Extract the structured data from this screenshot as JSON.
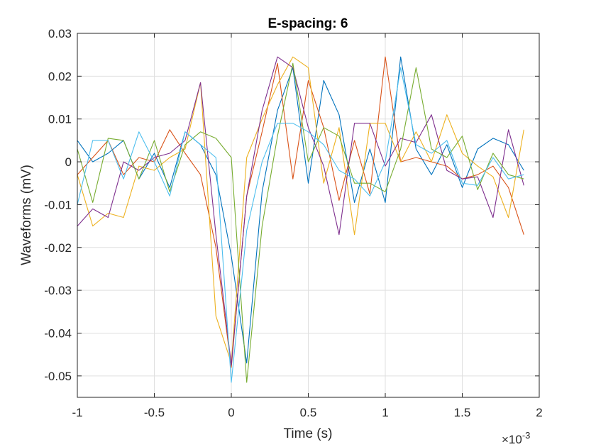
{
  "chart_data": {
    "type": "line",
    "title": "E-spacing: 6",
    "xlabel": "Time (s)",
    "ylabel": "Waveforms (mV)",
    "x_exponent_label": "×10",
    "x_exponent_power": "-3",
    "xlim": [
      -1,
      2
    ],
    "ylim": [
      -0.055,
      0.03
    ],
    "x_ticks": [
      -1,
      -0.5,
      0,
      0.5,
      1,
      1.5,
      2
    ],
    "x_tick_labels": [
      "-1",
      "-0.5",
      "0",
      "0.5",
      "1",
      "1.5",
      "2"
    ],
    "y_ticks": [
      0.03,
      0.02,
      0.01,
      0,
      -0.01,
      -0.02,
      -0.03,
      -0.04,
      -0.05
    ],
    "y_tick_labels": [
      "0.03",
      "0.02",
      "0.01",
      "0",
      "-0.01",
      "-0.02",
      "-0.03",
      "-0.04",
      "-0.05"
    ],
    "grid": true,
    "x": [
      -1.0,
      -0.9,
      -0.8,
      -0.7,
      -0.6,
      -0.5,
      -0.4,
      -0.3,
      -0.2,
      -0.1,
      0.0,
      0.1,
      0.2,
      0.3,
      0.4,
      0.5,
      0.6,
      0.7,
      0.8,
      0.9,
      1.0,
      1.1,
      1.2,
      1.3,
      1.4,
      1.5,
      1.6,
      1.7,
      1.8,
      1.9
    ],
    "series": [
      {
        "color": "#0072BD",
        "values": [
          0.005,
          0.0,
          0.002,
          0.005,
          -0.004,
          0.002,
          -0.006,
          0.007,
          0.004,
          -0.003,
          -0.022,
          -0.047,
          -0.007,
          0.012,
          0.022,
          -0.005,
          0.019,
          0.011,
          -0.0095,
          0.003,
          -0.0095,
          0.0245,
          0.003,
          -0.003,
          0.004,
          -0.006,
          0.003,
          0.0055,
          0.004,
          -0.002
        ]
      },
      {
        "color": "#D95319",
        "values": [
          -0.003,
          0.001,
          0.005,
          -0.003,
          0.001,
          0.0,
          0.0075,
          0.002,
          -0.003,
          -0.02,
          -0.048,
          -0.008,
          0.007,
          0.023,
          -0.004,
          0.019,
          0.008,
          -0.009,
          0.005,
          -0.0075,
          0.0245,
          0.0,
          0.001,
          0.0,
          -0.001,
          -0.004,
          -0.003,
          -0.001,
          -0.006,
          -0.017
        ]
      },
      {
        "color": "#EDB120",
        "values": [
          -0.003,
          -0.015,
          -0.012,
          -0.013,
          -0.001,
          -0.002,
          0.001,
          0.003,
          0.0185,
          -0.036,
          -0.047,
          0.001,
          0.01,
          0.018,
          0.0245,
          0.022,
          -0.005,
          0.008,
          -0.017,
          0.009,
          0.009,
          0.0,
          0.007,
          0.0,
          0.011,
          0.002,
          -0.001,
          -0.0035,
          -0.013,
          0.0075
        ]
      },
      {
        "color": "#7E2F8E",
        "values": [
          -0.015,
          -0.011,
          -0.013,
          0.0,
          -0.002,
          0.001,
          0.002,
          0.005,
          0.0185,
          -0.017,
          -0.0475,
          -0.008,
          0.012,
          0.0245,
          0.022,
          0.008,
          -0.001,
          -0.017,
          0.009,
          0.009,
          -0.001,
          0.0055,
          0.0045,
          0.011,
          -0.002,
          -0.004,
          -0.0035,
          -0.013,
          0.0075,
          -0.0055
        ]
      },
      {
        "color": "#77AC30",
        "values": [
          0.003,
          -0.0095,
          0.0055,
          0.005,
          -0.004,
          0.005,
          -0.007,
          0.004,
          0.007,
          0.0055,
          0.001,
          -0.0515,
          -0.015,
          0.006,
          0.023,
          0.0,
          0.008,
          0.006,
          -0.005,
          -0.005,
          -0.007,
          0.003,
          0.022,
          0.003,
          0.001,
          0.006,
          -0.0065,
          0.002,
          -0.003,
          -0.004
        ]
      },
      {
        "color": "#4DBEEE",
        "values": [
          -0.01,
          0.005,
          0.005,
          -0.004,
          0.007,
          0.0,
          -0.008,
          0.007,
          0.004,
          0.001,
          -0.0515,
          -0.016,
          0.0,
          0.009,
          0.009,
          0.007,
          0.004,
          -0.002,
          -0.004,
          -0.008,
          0.0,
          0.022,
          0.004,
          0.002,
          0.005,
          -0.005,
          -0.0055,
          0.001,
          -0.004,
          -0.003
        ]
      }
    ]
  }
}
